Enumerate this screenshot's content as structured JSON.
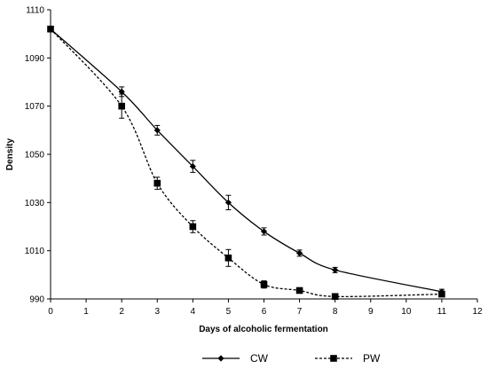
{
  "chart_data": {
    "type": "line",
    "title": "",
    "xlabel": "Days of alcoholic fermentation",
    "ylabel": "Density",
    "xlim": [
      0,
      12
    ],
    "ylim": [
      990,
      1110
    ],
    "xticks": [
      0,
      1,
      2,
      3,
      4,
      5,
      6,
      7,
      8,
      9,
      10,
      11,
      12
    ],
    "yticks": [
      990,
      1010,
      1030,
      1050,
      1070,
      1090,
      1110
    ],
    "grid": false,
    "legend_position": "bottom",
    "series": [
      {
        "name": "CW",
        "style": "solid",
        "marker": "diamond",
        "color": "#000000",
        "points": [
          {
            "x": 0,
            "y": 1102,
            "err": 0
          },
          {
            "x": 2,
            "y": 1076,
            "err": 2
          },
          {
            "x": 3,
            "y": 1060,
            "err": 2
          },
          {
            "x": 4,
            "y": 1045,
            "err": 2.5
          },
          {
            "x": 5,
            "y": 1030,
            "err": 3
          },
          {
            "x": 6,
            "y": 1018,
            "err": 1.5
          },
          {
            "x": 7,
            "y": 1009,
            "err": 1.3
          },
          {
            "x": 8,
            "y": 1002,
            "err": 1.1
          },
          {
            "x": 11,
            "y": 993,
            "err": 1
          }
        ]
      },
      {
        "name": "PW",
        "style": "dashed",
        "marker": "square",
        "color": "#000000",
        "points": [
          {
            "x": 0,
            "y": 1102,
            "err": 0
          },
          {
            "x": 2,
            "y": 1070,
            "err": 5
          },
          {
            "x": 3,
            "y": 1038,
            "err": 2.5
          },
          {
            "x": 4,
            "y": 1020,
            "err": 2.5
          },
          {
            "x": 5,
            "y": 1007,
            "err": 3.5
          },
          {
            "x": 6,
            "y": 996,
            "err": 1.5
          },
          {
            "x": 7,
            "y": 993.5,
            "err": 0.7
          },
          {
            "x": 8,
            "y": 991,
            "err": 0.7
          },
          {
            "x": 11,
            "y": 992,
            "err": 1
          }
        ]
      }
    ]
  }
}
